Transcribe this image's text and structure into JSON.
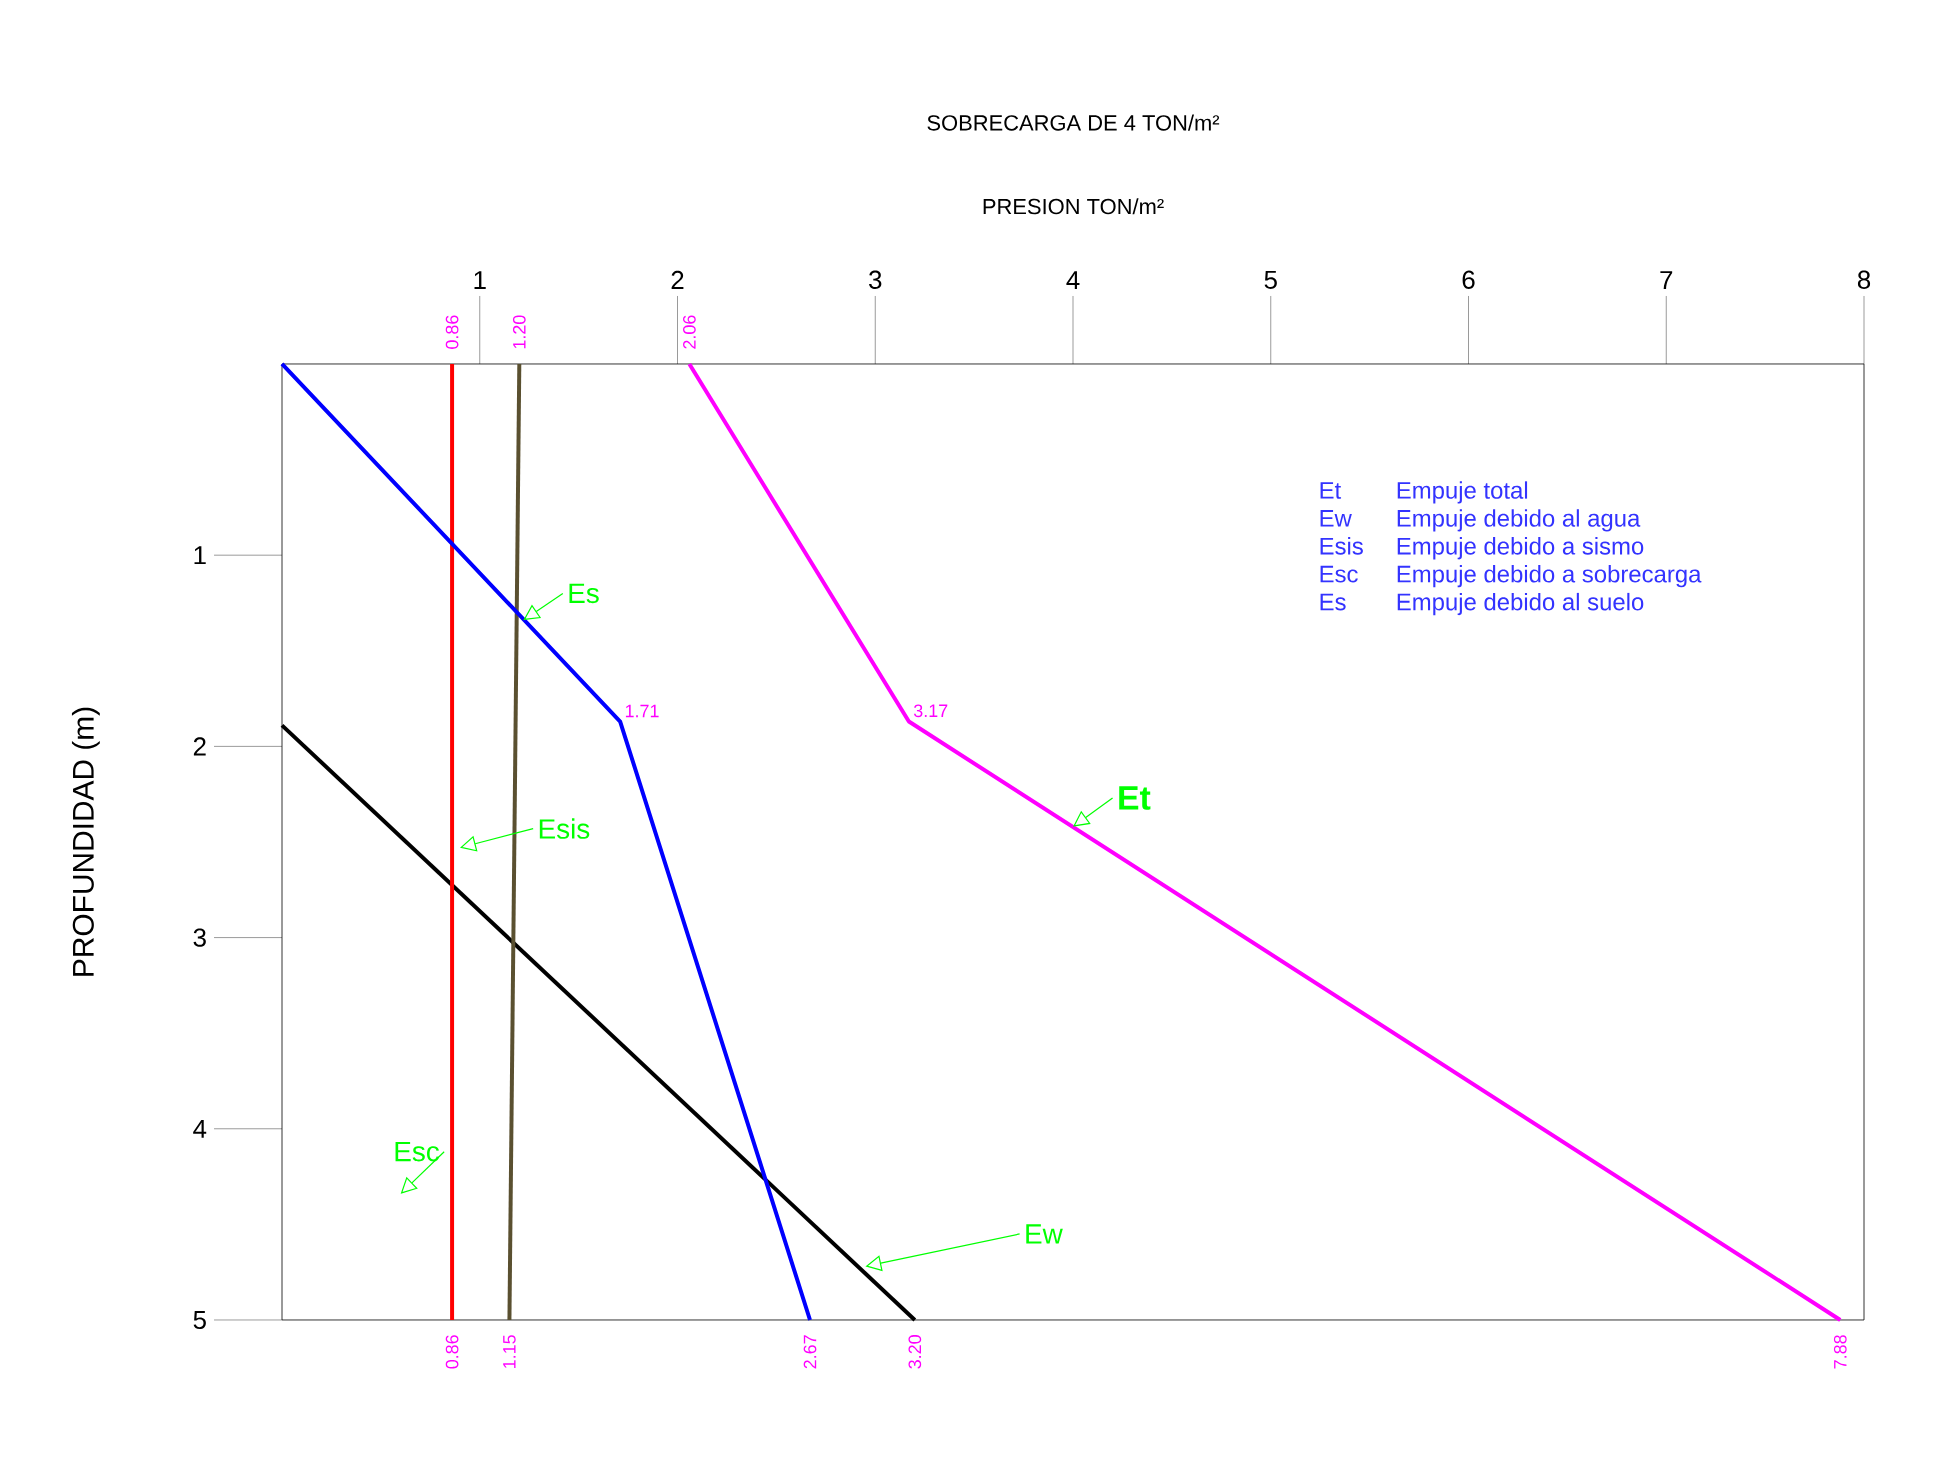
{
  "chart_data": {
    "type": "line",
    "title": "SOBRECARGA DE 4 TON/m²",
    "xlabel": "PRESION  TON/m²",
    "ylabel": "PROFUNDIDAD (m)",
    "xlim": [
      0,
      8
    ],
    "xticks": [
      1,
      2,
      3,
      4,
      5,
      6,
      7,
      8
    ],
    "ylim": [
      5,
      0
    ],
    "yticks": [
      1,
      2,
      3,
      4,
      5
    ],
    "grid": false,
    "marker": "none",
    "line_style": "solid",
    "series": [
      {
        "name": "Et",
        "color": "#ff00ff",
        "x": [
          2.06,
          3.17,
          7.88
        ],
        "values": [
          0,
          1.87,
          5
        ]
      },
      {
        "name": "Ew",
        "color": "#000000",
        "x": [
          0,
          3.2
        ],
        "values": [
          1.89,
          5
        ]
      },
      {
        "name": "Esis",
        "color": "#5a5030",
        "x": [
          1.2,
          1.15
        ],
        "values": [
          0,
          5
        ]
      },
      {
        "name": "Esc",
        "color": "#ff0000",
        "x": [
          0.86,
          0.86
        ],
        "values": [
          0,
          5
        ]
      },
      {
        "name": "Es",
        "color": "#0000ff",
        "x": [
          0,
          1.71,
          2.67
        ],
        "values": [
          0,
          1.87,
          5
        ]
      }
    ],
    "annotations": [
      {
        "text": "0.86",
        "x": 0.86,
        "y": 0
      },
      {
        "text": "1.20",
        "x": 1.2,
        "y": 0
      },
      {
        "text": "2.06",
        "x": 2.06,
        "y": 0
      },
      {
        "text": "1.71",
        "x": 1.71,
        "y": 1.87
      },
      {
        "text": "3.17",
        "x": 3.17,
        "y": 1.87
      },
      {
        "text": "0.86",
        "x": 0.86,
        "y": 5
      },
      {
        "text": "1.15",
        "x": 1.15,
        "y": 5
      },
      {
        "text": "2.67",
        "x": 2.67,
        "y": 5
      },
      {
        "text": "3.20",
        "x": 3.2,
        "y": 5
      },
      {
        "text": "7.88",
        "x": 7.88,
        "y": 5
      },
      "Et",
      "Empuje total",
      "Ew",
      "Empuje debido al agua",
      "Esis",
      "Empuje debido a sismo",
      "Esc",
      "Empuje debido a sobrecarga",
      "Es",
      "Empuje debido al suelo"
    ]
  }
}
